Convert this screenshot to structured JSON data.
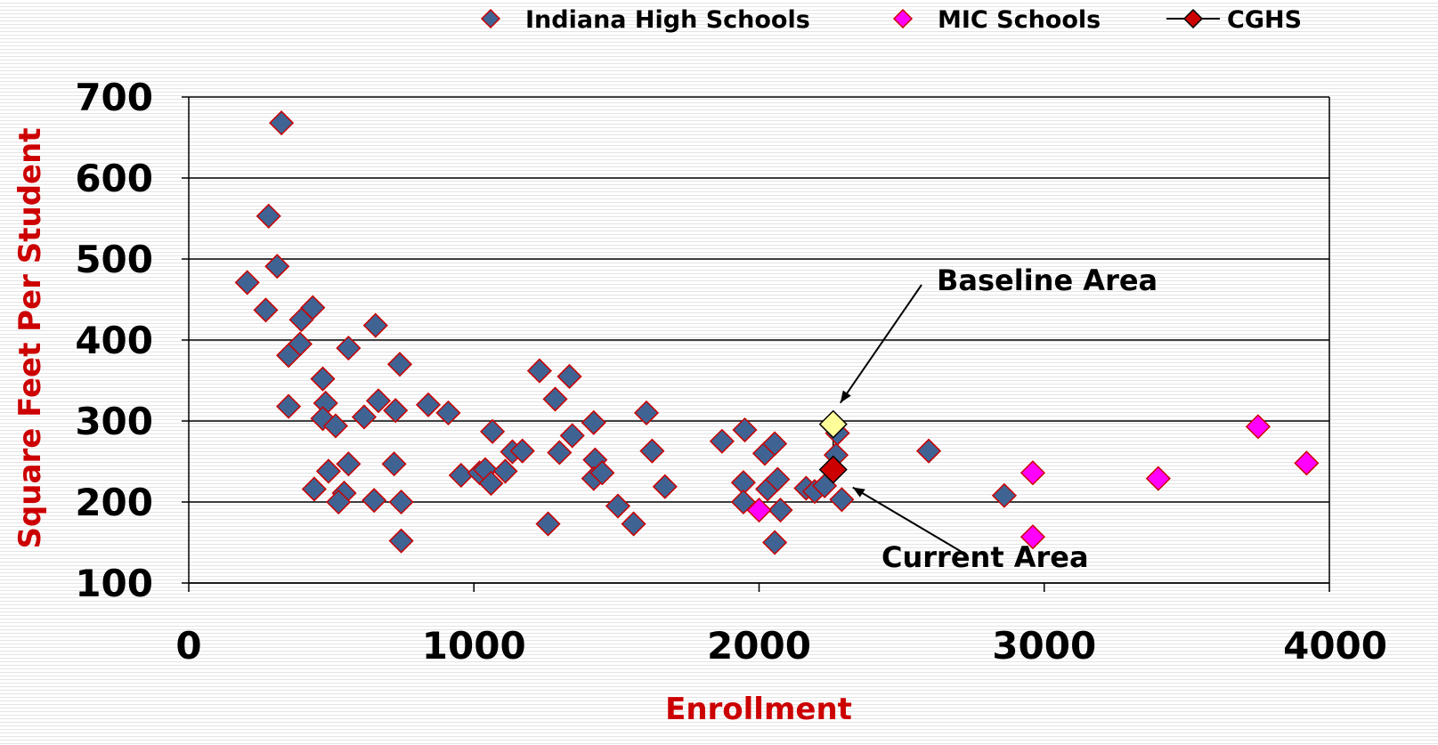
{
  "chart_data": {
    "type": "scatter",
    "title": "",
    "xlabel": "Enrollment",
    "ylabel": "Square Feet Per Student",
    "xlim": [
      0,
      4000
    ],
    "ylim": [
      100,
      700
    ],
    "x_ticks": [
      0,
      1000,
      2000,
      3000,
      4000
    ],
    "y_ticks": [
      100,
      200,
      300,
      400,
      500,
      600,
      700
    ],
    "grid": "horizontal",
    "legend_position": "top",
    "label_color": "#cc0000",
    "series": [
      {
        "name": "Indiana High Schools",
        "marker": "diamond",
        "color": "#3f6393",
        "edge_color": "#cc0000",
        "points": [
          [
            325,
            668
          ],
          [
            280,
            553
          ],
          [
            310,
            491
          ],
          [
            205,
            471
          ],
          [
            270,
            437
          ],
          [
            435,
            440
          ],
          [
            395,
            425
          ],
          [
            390,
            395
          ],
          [
            350,
            381
          ],
          [
            560,
            390
          ],
          [
            655,
            418
          ],
          [
            740,
            370
          ],
          [
            350,
            318
          ],
          [
            470,
            352
          ],
          [
            480,
            322
          ],
          [
            470,
            303
          ],
          [
            515,
            294
          ],
          [
            615,
            305
          ],
          [
            665,
            325
          ],
          [
            725,
            313
          ],
          [
            840,
            320
          ],
          [
            910,
            310
          ],
          [
            440,
            216
          ],
          [
            490,
            238
          ],
          [
            545,
            211
          ],
          [
            525,
            200
          ],
          [
            560,
            247
          ],
          [
            650,
            202
          ],
          [
            720,
            247
          ],
          [
            745,
            200
          ],
          [
            745,
            152
          ],
          [
            955,
            233
          ],
          [
            1020,
            236
          ],
          [
            1040,
            240
          ],
          [
            1060,
            223
          ],
          [
            1065,
            287
          ],
          [
            1110,
            238
          ],
          [
            1135,
            262
          ],
          [
            1170,
            263
          ],
          [
            1230,
            362
          ],
          [
            1260,
            173
          ],
          [
            1285,
            327
          ],
          [
            1300,
            261
          ],
          [
            1335,
            355
          ],
          [
            1345,
            282
          ],
          [
            1420,
            298
          ],
          [
            1425,
            252
          ],
          [
            1420,
            229
          ],
          [
            1450,
            236
          ],
          [
            1505,
            195
          ],
          [
            1560,
            173
          ],
          [
            1605,
            310
          ],
          [
            1625,
            263
          ],
          [
            1670,
            219
          ],
          [
            1870,
            275
          ],
          [
            1950,
            289
          ],
          [
            1945,
            224
          ],
          [
            1945,
            200
          ],
          [
            2020,
            260
          ],
          [
            2030,
            216
          ],
          [
            2055,
            272
          ],
          [
            2065,
            228
          ],
          [
            2075,
            190
          ],
          [
            2055,
            150
          ],
          [
            2165,
            217
          ],
          [
            2195,
            213
          ],
          [
            2230,
            220
          ],
          [
            2275,
            285
          ],
          [
            2270,
            258
          ],
          [
            2290,
            203
          ],
          [
            2595,
            263
          ],
          [
            2860,
            208
          ]
        ]
      },
      {
        "name": "MIC Schools",
        "marker": "diamond",
        "color": "#ff00ff",
        "edge_color": "#cc0000",
        "points": [
          [
            2000,
            190
          ],
          [
            2960,
            236
          ],
          [
            2960,
            157
          ],
          [
            3400,
            229
          ],
          [
            3750,
            293
          ],
          [
            3920,
            248
          ]
        ]
      },
      {
        "name": "CGHS",
        "marker": "diamond",
        "color": "#cc0000",
        "edge_color": "#000000",
        "line": true,
        "points": [
          [
            2260,
            296
          ],
          [
            2260,
            240
          ]
        ],
        "point_colors": [
          "#ffff99",
          "#cc0000"
        ]
      }
    ],
    "annotations": [
      {
        "text": "Baseline Area",
        "x": 2260,
        "y": 296
      },
      {
        "text": "Current Area",
        "x": 2260,
        "y": 240
      }
    ]
  }
}
